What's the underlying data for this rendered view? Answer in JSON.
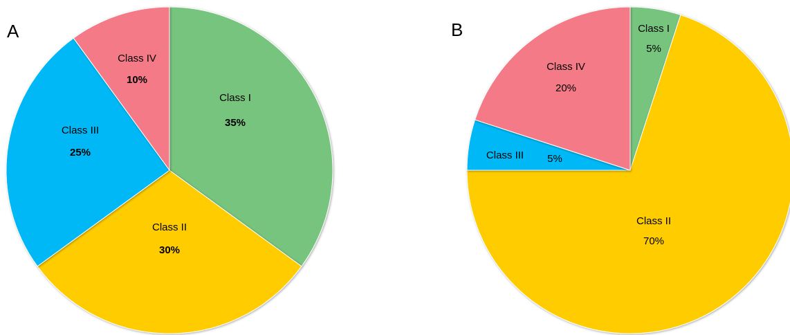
{
  "chart_data": [
    {
      "type": "pie",
      "panel_label": "A",
      "categories": [
        "Class I",
        "Class II",
        "Class III",
        "Class IV"
      ],
      "values": [
        35,
        30,
        25,
        10
      ],
      "value_labels": [
        "35%",
        "30%",
        "25%",
        "10%"
      ],
      "colors": [
        "#76C47E",
        "#FFCC00",
        "#00B8F5",
        "#F47A87"
      ],
      "start": "12 o'clock, clockwise",
      "legend": "none",
      "value_labels_bold": true
    },
    {
      "type": "pie",
      "panel_label": "B",
      "categories": [
        "Class I",
        "Class II",
        "Class III",
        "Class IV"
      ],
      "values": [
        5,
        70,
        5,
        20
      ],
      "value_labels": [
        "5%",
        "70%",
        "5%",
        "20%"
      ],
      "colors": [
        "#76C47E",
        "#FFCC00",
        "#00B8F5",
        "#F47A87"
      ],
      "start": "12 o'clock, clockwise",
      "legend": "none",
      "value_labels_bold": false
    }
  ]
}
